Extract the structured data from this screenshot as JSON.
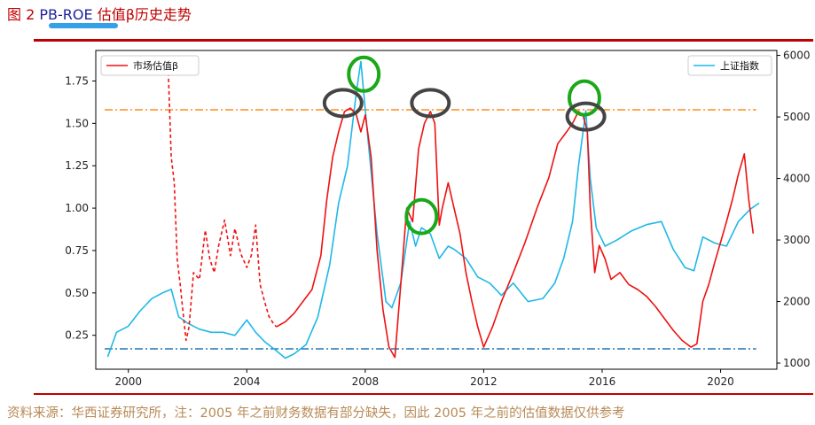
{
  "header": {
    "fig_prefix": "图 2",
    "fig_code": "PB-ROE",
    "fig_suffix": "估值β历史走势"
  },
  "footer": {
    "source": "资料来源：华西证券研究所，注：2005 年之前财务数据有部分缺失，因此 2005 年之前的估值数据仅供参考"
  },
  "colors": {
    "beta": "#ee1111",
    "index": "#1fb8e8",
    "upper_ref": "#ff8c1a",
    "lower_ref": "#1f77b4",
    "green_circle": "#1aa81a",
    "gray_circle": "#444444",
    "rule": "#c00000"
  },
  "chart_data": {
    "type": "line",
    "x_ticks": [
      "2000",
      "2004",
      "2008",
      "2012",
      "2016",
      "2020"
    ],
    "xlim": [
      1998.9,
      2021.9
    ],
    "y_left_ticks": [
      "0.25",
      "0.50",
      "0.75",
      "1.00",
      "1.25",
      "1.50",
      "1.75"
    ],
    "ylim_left": [
      0.05,
      1.93
    ],
    "y_right_ticks": [
      "1000",
      "2000",
      "3000",
      "4000",
      "5000",
      "6000"
    ],
    "ylim_right": [
      900,
      6080
    ],
    "legend": [
      {
        "label": "市场估值β",
        "position": "top-left"
      },
      {
        "label": "上证指数",
        "position": "top-right"
      }
    ],
    "reference_lines": [
      {
        "axis": "left",
        "value": 1.58,
        "style": "dash-dot",
        "color": "#ff8c1a"
      },
      {
        "axis": "left",
        "value": 0.17,
        "style": "dash-dot",
        "color": "#1f77b4"
      }
    ],
    "series": [
      {
        "name": "市场估值β",
        "axis": "left",
        "segments": [
          {
            "style": "dashed",
            "x": [
              2001.35,
              2001.45,
              2001.55,
              2001.65,
              2001.75,
              2001.85,
              2001.95,
              2002.05,
              2002.2,
              2002.4,
              2002.6,
              2002.75,
              2002.9,
              2003.05,
              2003.25,
              2003.45,
              2003.6,
              2003.8,
              2004.0,
              2004.15,
              2004.3,
              2004.45,
              2004.6,
              2004.75,
              2004.9,
              2005.0
            ],
            "y": [
              1.8,
              1.3,
              1.15,
              0.7,
              0.55,
              0.38,
              0.22,
              0.3,
              0.62,
              0.58,
              0.87,
              0.7,
              0.62,
              0.78,
              0.93,
              0.72,
              0.88,
              0.73,
              0.65,
              0.72,
              0.9,
              0.55,
              0.45,
              0.36,
              0.32,
              0.3
            ]
          },
          {
            "style": "solid",
            "x": [
              2005.0,
              2005.3,
              2005.6,
              2005.9,
              2006.2,
              2006.5,
              2006.7,
              2006.9,
              2007.1,
              2007.3,
              2007.5,
              2007.7,
              2007.85,
              2008.0,
              2008.2,
              2008.4,
              2008.6,
              2008.8,
              2009.0,
              2009.2,
              2009.4,
              2009.6,
              2009.8,
              2010.0,
              2010.2,
              2010.35,
              2010.5,
              2010.6,
              2010.8,
              2011.0,
              2011.2,
              2011.4,
              2011.6,
              2011.8,
              2012.0,
              2012.3,
              2012.6,
              2013.0,
              2013.4,
              2013.8,
              2014.2,
              2014.5,
              2014.8,
              2015.0,
              2015.2,
              2015.35,
              2015.5,
              2015.6,
              2015.75,
              2015.9,
              2016.1,
              2016.3,
              2016.6,
              2016.9,
              2017.2,
              2017.5,
              2017.8,
              2018.1,
              2018.4,
              2018.7,
              2019.0,
              2019.2,
              2019.4,
              2019.6,
              2019.8,
              2020.0,
              2020.2,
              2020.4,
              2020.6,
              2020.8,
              2020.95,
              2021.1
            ],
            "y": [
              0.3,
              0.33,
              0.38,
              0.45,
              0.52,
              0.72,
              1.05,
              1.3,
              1.45,
              1.57,
              1.59,
              1.55,
              1.45,
              1.55,
              1.3,
              0.75,
              0.4,
              0.18,
              0.12,
              0.55,
              1.0,
              0.92,
              1.35,
              1.5,
              1.57,
              1.5,
              0.9,
              1.0,
              1.15,
              1.0,
              0.85,
              0.62,
              0.45,
              0.3,
              0.18,
              0.3,
              0.45,
              0.62,
              0.8,
              1.0,
              1.18,
              1.38,
              1.45,
              1.5,
              1.57,
              1.55,
              1.45,
              1.0,
              0.62,
              0.78,
              0.7,
              0.58,
              0.62,
              0.55,
              0.52,
              0.48,
              0.42,
              0.35,
              0.28,
              0.22,
              0.18,
              0.2,
              0.45,
              0.55,
              0.68,
              0.8,
              0.92,
              1.05,
              1.2,
              1.32,
              1.05,
              0.85
            ]
          }
        ]
      },
      {
        "name": "上证指数",
        "axis": "right",
        "segments": [
          {
            "style": "solid",
            "x": [
              1999.3,
              1999.6,
              2000.0,
              2000.4,
              2000.8,
              2001.2,
              2001.45,
              2001.7,
              2002.0,
              2002.4,
              2002.8,
              2003.2,
              2003.6,
              2004.0,
              2004.3,
              2004.6,
              2005.0,
              2005.3,
              2005.6,
              2006.0,
              2006.4,
              2006.8,
              2007.1,
              2007.4,
              2007.7,
              2007.85,
              2008.1,
              2008.4,
              2008.7,
              2008.9,
              2009.2,
              2009.5,
              2009.7,
              2009.9,
              2010.2,
              2010.5,
              2010.8,
              2011.0,
              2011.4,
              2011.8,
              2012.2,
              2012.6,
              2013.0,
              2013.5,
              2014.0,
              2014.4,
              2014.7,
              2015.0,
              2015.2,
              2015.45,
              2015.6,
              2015.8,
              2016.1,
              2016.5,
              2017.0,
              2017.5,
              2018.0,
              2018.4,
              2018.8,
              2019.1,
              2019.4,
              2019.8,
              2020.2,
              2020.6,
              2021.0,
              2021.3
            ],
            "y": [
              1100,
              1500,
              1600,
              1850,
              2050,
              2150,
              2200,
              1750,
              1650,
              1550,
              1500,
              1500,
              1450,
              1700,
              1500,
              1350,
              1200,
              1080,
              1150,
              1300,
              1750,
              2600,
              3600,
              4200,
              5400,
              5900,
              4600,
              3100,
              2000,
              1900,
              2300,
              3300,
              2900,
              3200,
              3100,
              2700,
              2900,
              2850,
              2700,
              2400,
              2300,
              2100,
              2300,
              2000,
              2050,
              2300,
              2700,
              3300,
              4200,
              5100,
              4000,
              3200,
              2900,
              3000,
              3150,
              3250,
              3300,
              2850,
              2550,
              2500,
              3050,
              2950,
              2900,
              3300,
              3500,
              3600
            ]
          }
        ]
      }
    ],
    "highlights": [
      {
        "shape": "circle",
        "color": "green",
        "x": 2007.95,
        "axis": "left",
        "y": 1.79
      },
      {
        "shape": "circle",
        "color": "gray",
        "x": 2007.25,
        "axis": "left",
        "y": 1.62
      },
      {
        "shape": "circle",
        "color": "gray",
        "x": 2010.2,
        "axis": "left",
        "y": 1.62
      },
      {
        "shape": "circle",
        "color": "green",
        "x": 2009.9,
        "axis": "left",
        "y": 0.95
      },
      {
        "shape": "circle",
        "color": "green",
        "x": 2015.4,
        "axis": "left",
        "y": 1.65
      },
      {
        "shape": "circle",
        "color": "gray",
        "x": 2015.45,
        "axis": "left",
        "y": 1.54
      }
    ]
  }
}
